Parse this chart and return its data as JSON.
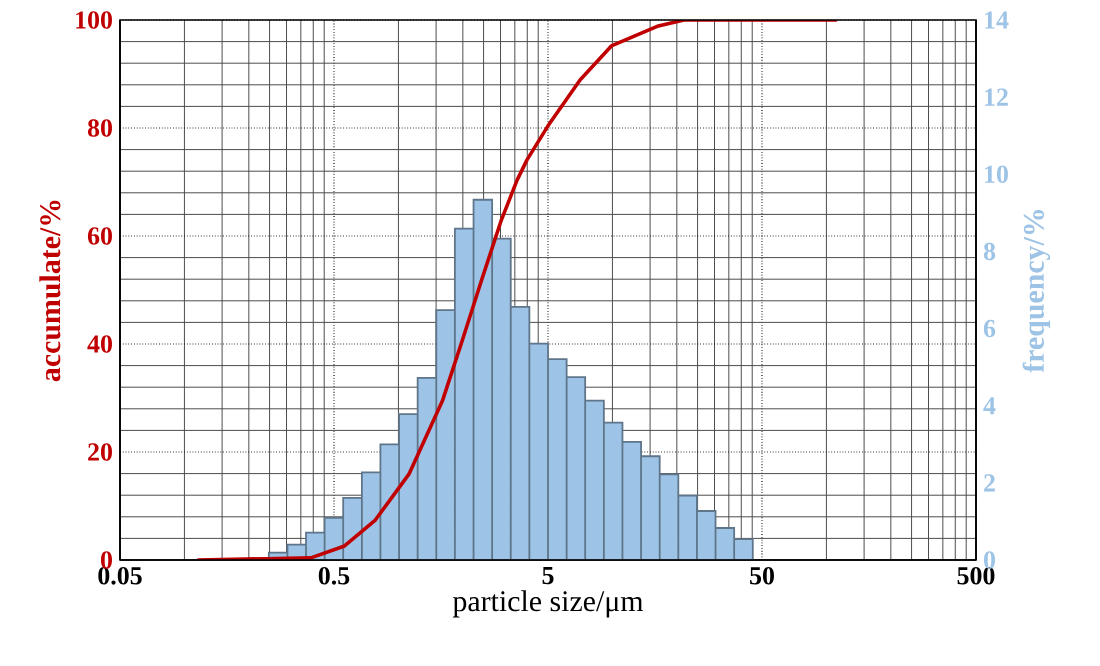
{
  "chart_data": {
    "type": "histogram",
    "xlabel": "particle size/μm",
    "ylabel": "accumulate/%",
    "y2label": "frequency/%",
    "log": "x",
    "grid": true,
    "xlim": [
      0.05,
      500
    ],
    "xticks": [
      0.05,
      0.5,
      5,
      50,
      500
    ],
    "ylim": [
      0,
      100
    ],
    "yticks": [
      0,
      20,
      40,
      60,
      80,
      100
    ],
    "y2lim": [
      0,
      14
    ],
    "y2ticks": [
      0,
      2,
      4,
      6,
      8,
      10,
      12,
      14
    ],
    "series": [
      {
        "axis": "y2",
        "color": "#9dc3e6",
        "bins": [
          0.203,
          0.248,
          0.303,
          0.37,
          0.452,
          0.552,
          0.675,
          0.824,
          1.007,
          1.23,
          1.503,
          1.836,
          2.244,
          2.741,
          3.349,
          4.092,
          5,
          6.11,
          7.46,
          9.12,
          11.14,
          13.61,
          16.63,
          20.32,
          24.83,
          30.33,
          37.06,
          45.28
        ],
        "values": [
          0.05,
          0.19,
          0.4,
          0.71,
          1.09,
          1.61,
          2.27,
          3.0,
          3.78,
          4.72,
          6.48,
          8.59,
          9.34,
          8.33,
          6.56,
          5.61,
          5.21,
          4.74,
          4.13,
          3.56,
          3.06,
          2.69,
          2.22,
          1.67,
          1.27,
          0.83,
          0.54
        ]
      },
      {
        "type": "line",
        "axis": "y",
        "color": "#c00000",
        "x": [
          0.115,
          0.39,
          0.56,
          0.78,
          1.12,
          1.61,
          1.99,
          2.45,
          3.03,
          3.59,
          3.99,
          5.0,
          7.06,
          9.89,
          16.4,
          21.6,
          112
        ],
        "values": [
          0,
          0.4,
          2.6,
          7.4,
          15.9,
          29.6,
          40.7,
          51.9,
          63,
          70.4,
          74.1,
          80.4,
          88.9,
          95.2,
          98.9,
          100,
          100
        ]
      }
    ]
  }
}
